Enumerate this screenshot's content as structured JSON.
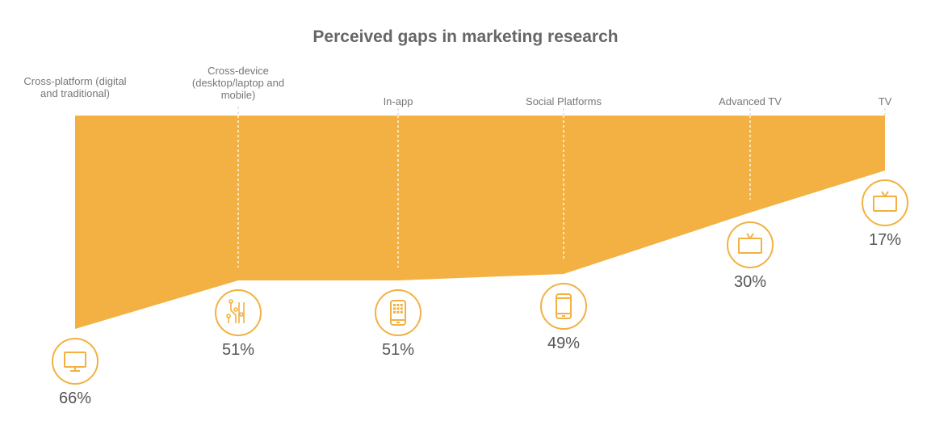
{
  "chart_data": {
    "type": "area",
    "title": "Perceived gaps in marketing research",
    "categories": [
      "Cross-platform (digital and traditional)",
      "Cross-device (desktop/laptop and mobile)",
      "In-app",
      "Social Platforms",
      "Advanced TV",
      "TV"
    ],
    "category_lines": [
      [
        "Cross-platform (digital",
        "and traditional)"
      ],
      [
        "Cross-device",
        "(desktop/laptop and",
        "mobile)"
      ],
      [
        "In-app"
      ],
      [
        "Social Platforms"
      ],
      [
        "Advanced TV"
      ],
      [
        "TV"
      ]
    ],
    "values": [
      66,
      51,
      51,
      49,
      30,
      17
    ],
    "value_labels": [
      "66%",
      "51%",
      "51%",
      "49%",
      "30%",
      "17%"
    ],
    "icons": [
      "monitor-icon",
      "circuit-icon",
      "app-phone-icon",
      "smartphone-icon",
      "advanced-tv-icon",
      "tv-icon"
    ],
    "ylim": [
      0,
      66
    ],
    "xlabel": "",
    "ylabel": "",
    "grid": false,
    "colors": {
      "fill": "#F2B142",
      "icon": "#F2B142",
      "text": "#555555",
      "title": "#666666"
    }
  }
}
